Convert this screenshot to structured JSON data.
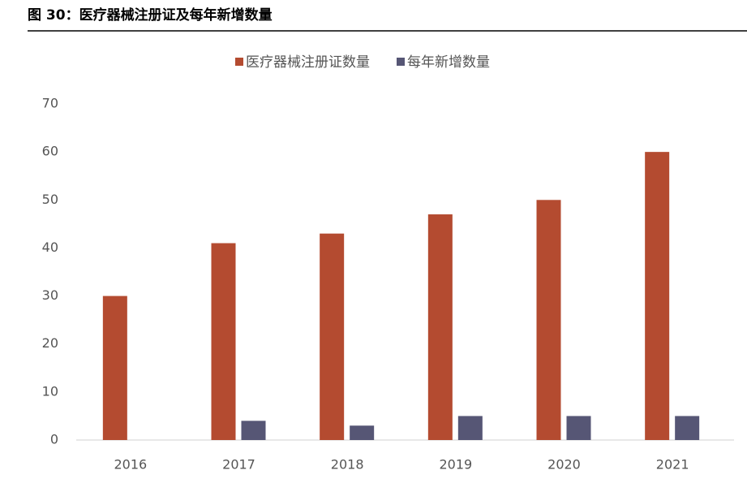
{
  "chart_data": {
    "type": "bar",
    "title": "图 30：医疗器械注册证及每年新增数量",
    "categories": [
      "2016",
      "2017",
      "2018",
      "2019",
      "2020",
      "2021"
    ],
    "series": [
      {
        "name": "医疗器械注册证数量",
        "color": "#b44b30",
        "values": [
          30,
          41,
          43,
          47,
          50,
          60
        ]
      },
      {
        "name": "每年新增数量",
        "color": "#565675",
        "values": [
          null,
          4,
          3,
          5,
          5,
          5
        ]
      }
    ],
    "ylim": [
      0,
      70
    ],
    "yticks": [
      0,
      10,
      20,
      30,
      40,
      50,
      60,
      70
    ],
    "grid": false,
    "legend": "top"
  }
}
